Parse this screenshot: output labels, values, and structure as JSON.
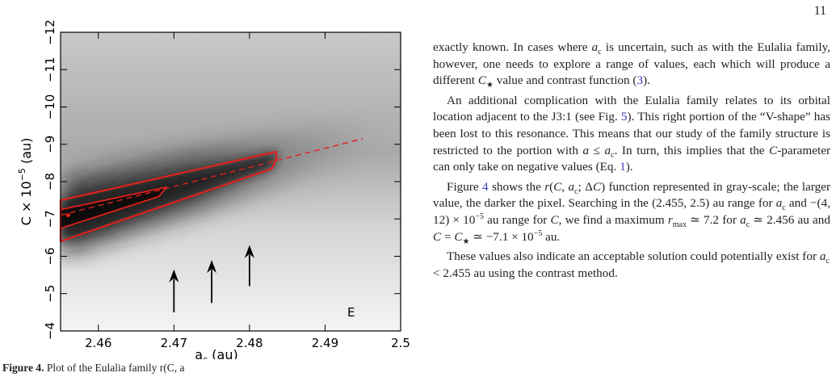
{
  "page_number": "11",
  "figure": {
    "ylabel": "C × 10",
    "ylabel_exp": "−5",
    "ylabel_unit": "(au)",
    "xlabel": "a",
    "xlabel_sub": "c",
    "xlabel_unit": "(au)",
    "panel_letter": "E",
    "caption_prefix": "Figure 4.",
    "caption_text": "Plot of the Eulalia family r(C, a",
    "colors": {
      "contour": "#e0201c",
      "frame": "#000000",
      "dark": "#0a0a0a",
      "light": "#f4f4f4"
    }
  },
  "chart_data": {
    "type": "heatmap",
    "xlabel": "a_c (au)",
    "ylabel": "C × 10^-5 (au)",
    "xlim": [
      2.455,
      2.5
    ],
    "ylim": [
      -4,
      -12
    ],
    "x_ticks": [
      "2.46",
      "2.47",
      "2.48",
      "2.49",
      "2.5"
    ],
    "x_tick_values": [
      2.46,
      2.47,
      2.48,
      2.49,
      2.5
    ],
    "y_ticks": [
      "−4",
      "−5",
      "−6",
      "−7",
      "−8",
      "−9",
      "−10",
      "−11",
      "−12"
    ],
    "y_tick_values": [
      -4,
      -5,
      -6,
      -7,
      -8,
      -9,
      -10,
      -11,
      -12
    ],
    "dashed_line": {
      "x": [
        2.455,
        2.495
      ],
      "y": [
        -7.1,
        -9.15
      ]
    },
    "outer_contour": {
      "x": [
        2.455,
        2.483,
        2.4836,
        2.4835,
        2.455
      ],
      "y": [
        -6.4,
        -8.35,
        -8.65,
        -8.8,
        -7.5
      ]
    },
    "inner_contour": {
      "x": [
        2.455,
        2.468,
        2.469,
        2.455
      ],
      "y": [
        -6.75,
        -7.6,
        -7.85,
        -7.25
      ]
    },
    "maximum": {
      "x": 2.456,
      "y": -7.1
    },
    "arrows_x": [
      2.47,
      2.475,
      2.48
    ],
    "arrows_from_y": [
      -4.5,
      -4.75,
      -5.2
    ],
    "arrows_to_y": [
      -5.65,
      -5.9,
      -6.3
    ]
  },
  "paragraphs": [
    {
      "id": "p1",
      "html": "exactly known. In cases where <span class=\"m\">a</span><span class=\"sub\">c</span> is uncertain, such as with the Eulalia family, however, one needs to explore a range of values, each which will produce a different <span class=\"m\">C</span><span class=\"sub\">★</span> value and contrast function (<span class=\"ref\">3</span>)."
    },
    {
      "id": "p2",
      "html": "An additional complication with the Eulalia family relates to its orbital location adjacent to the J3:1 (see Fig. <span class=\"ref\">5</span>). This right portion of the “V-shape” has been lost to this resonance. This means that our study of the family structure is restricted to the portion with <span class=\"m\">a</span> ≤ <span class=\"m\">a</span><span class=\"sub\">c</span>. In turn, this implies that the <span class=\"m\">C</span>-parameter can only take on negative values (Eq. <span class=\"ref\">1</span>)."
    },
    {
      "id": "p3",
      "html": "Figure <span class=\"ref\">4</span> shows the <span class=\"m\">r</span>(<span class=\"m\">C</span>, <span class=\"m\">a</span><span class=\"sub\">c</span>; Δ<span class=\"m\">C</span>) function represented in gray-scale; the larger value, the darker the pixel. Searching in the (2.455, 2.5) au range for <span class=\"m\">a</span><span class=\"sub\">c</span> and −(4, 12) × 10<span class=\"sup\">−5</span> au range for <span class=\"m\">C</span>, we find a maximum <span class=\"m\">r</span><span class=\"sub\">max</span> ≃ 7.2 for <span class=\"m\">a</span><span class=\"sub\">c</span> ≃ 2.456 au and <span class=\"m\">C</span> = <span class=\"m\">C</span><span class=\"sub\">★</span> ≃ −7.1 × 10<span class=\"sup\">−5</span> au."
    },
    {
      "id": "p4",
      "html": "These values also indicate an acceptable solution could potentially exist for <span class=\"m\">a</span><span class=\"sub\">c</span> &lt; 2.455 au using the contrast method."
    }
  ]
}
